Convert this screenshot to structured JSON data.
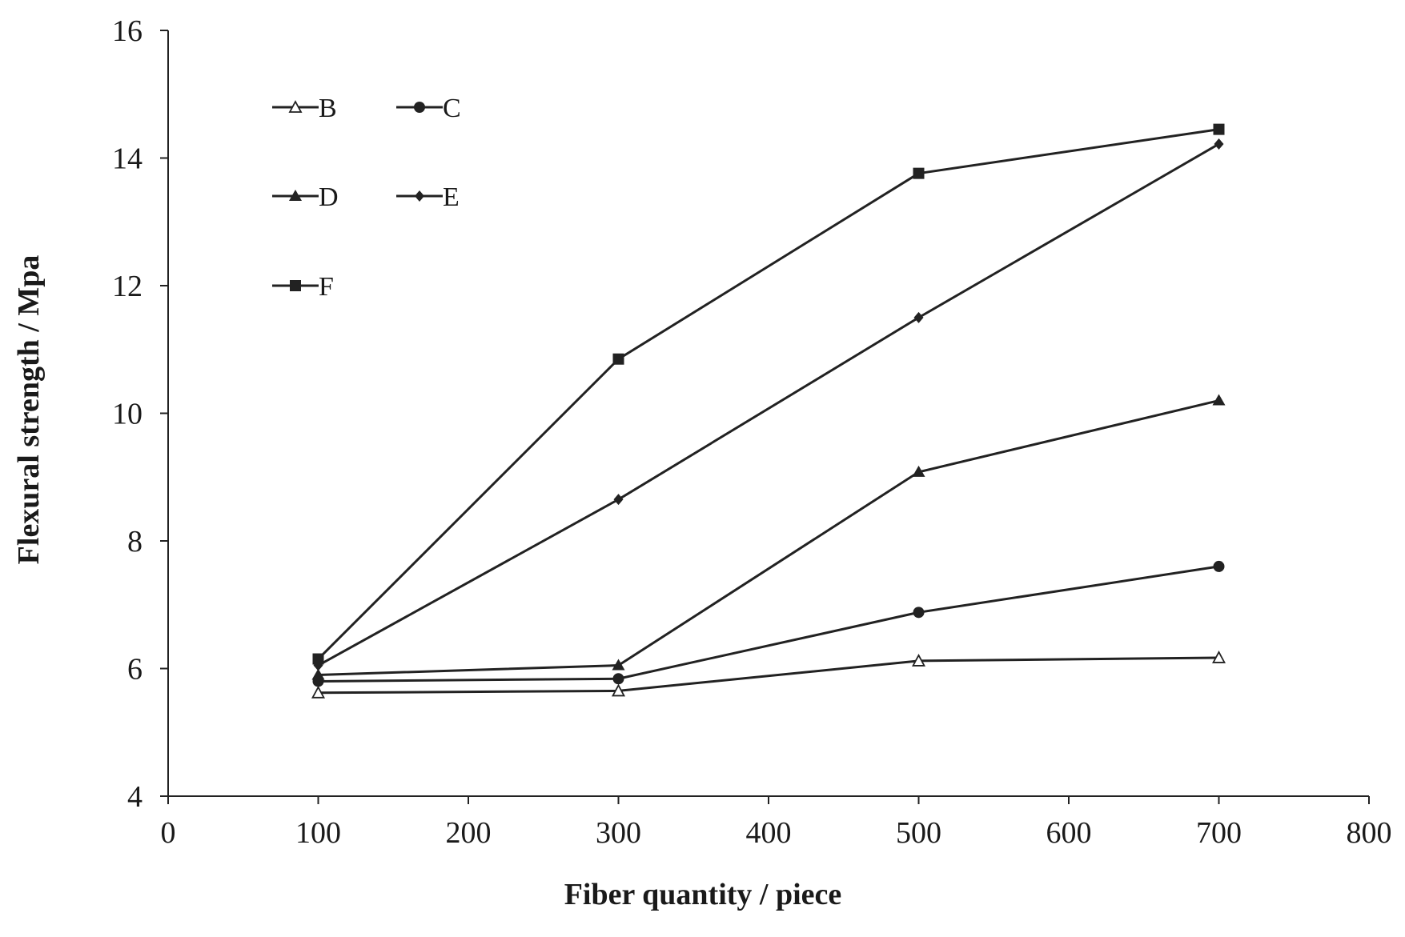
{
  "chart_data": {
    "type": "line",
    "xlabel": "Fiber quantity / piece",
    "ylabel": "Flexural strength / Mpa",
    "xlim": [
      0,
      800
    ],
    "ylim": [
      4,
      16
    ],
    "x_ticks": [
      0,
      100,
      200,
      300,
      400,
      500,
      600,
      700,
      800
    ],
    "y_ticks": [
      4,
      6,
      8,
      10,
      12,
      14,
      16
    ],
    "grid": false,
    "legend_position": "top-left",
    "x": [
      100,
      300,
      500,
      700
    ],
    "series": [
      {
        "name": "B",
        "marker": "open-triangle",
        "values": [
          5.62,
          5.65,
          6.12,
          6.17
        ]
      },
      {
        "name": "C",
        "marker": "circle",
        "values": [
          5.8,
          5.84,
          6.88,
          7.6
        ]
      },
      {
        "name": "D",
        "marker": "triangle",
        "values": [
          5.9,
          6.05,
          9.08,
          10.2
        ]
      },
      {
        "name": "E",
        "marker": "diamond",
        "values": [
          6.05,
          8.65,
          11.5,
          14.22
        ]
      },
      {
        "name": "F",
        "marker": "square",
        "values": [
          6.15,
          10.85,
          13.76,
          14.45
        ]
      }
    ],
    "line_color": "#222222"
  }
}
